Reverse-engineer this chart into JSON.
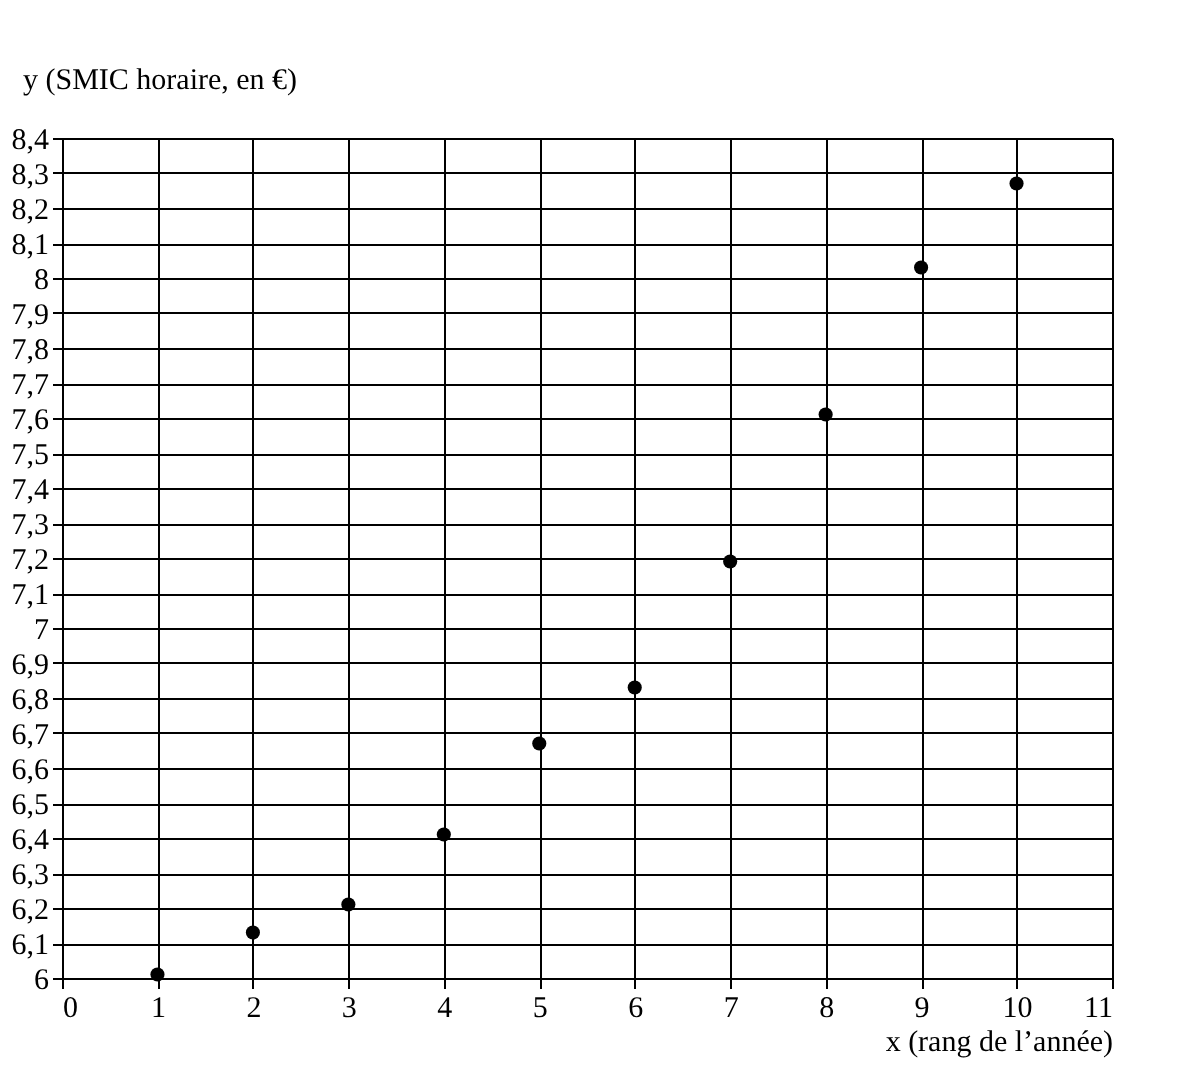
{
  "chart_data": {
    "type": "scatter",
    "xlabel": "x (rang de l’année)",
    "ylabel": "y (SMIC horaire, en €)",
    "x": [
      1,
      2,
      3,
      4,
      5,
      6,
      7,
      8,
      9,
      10
    ],
    "series": [
      {
        "color": "#000000",
        "values": [
          6.01,
          6.13,
          6.21,
          6.41,
          6.67,
          6.83,
          7.19,
          7.61,
          8.03,
          8.27
        ]
      }
    ],
    "xlim": [
      0,
      11
    ],
    "xticks": [
      0,
      1,
      2,
      3,
      4,
      5,
      6,
      7,
      8,
      9,
      10,
      11
    ],
    "ylim": [
      6,
      8.4
    ],
    "yticks": [
      6,
      {
        "value": 6.1,
        "label": "6,1"
      },
      {
        "value": 6.2,
        "label": "6,2"
      },
      {
        "value": 6.3,
        "label": "6,3"
      },
      {
        "value": 6.4,
        "label": "6,4"
      },
      {
        "value": 6.5,
        "label": "6,5"
      },
      {
        "value": 6.6,
        "label": "6,6"
      },
      {
        "value": 6.7,
        "label": "6,7"
      },
      {
        "value": 6.8,
        "label": "6,8"
      },
      {
        "value": 6.9,
        "label": "6,9"
      },
      7,
      {
        "value": 7.1,
        "label": "7,1"
      },
      {
        "value": 7.2,
        "label": "7,2"
      },
      {
        "value": 7.3,
        "label": "7,3"
      },
      {
        "value": 7.4,
        "label": "7,4"
      },
      {
        "value": 7.5,
        "label": "7,5"
      },
      {
        "value": 7.6,
        "label": "7,6"
      },
      {
        "value": 7.7,
        "label": "7,7"
      },
      {
        "value": 7.8,
        "label": "7,8"
      },
      {
        "value": 7.9,
        "label": "7,9"
      },
      8,
      {
        "value": 8.1,
        "label": "8,1"
      },
      {
        "value": 8.2,
        "label": "8,2"
      },
      {
        "value": 8.3,
        "label": "8,3"
      },
      {
        "value": 8.4,
        "label": "8,4"
      }
    ],
    "grid": true,
    "marker": "circle"
  }
}
